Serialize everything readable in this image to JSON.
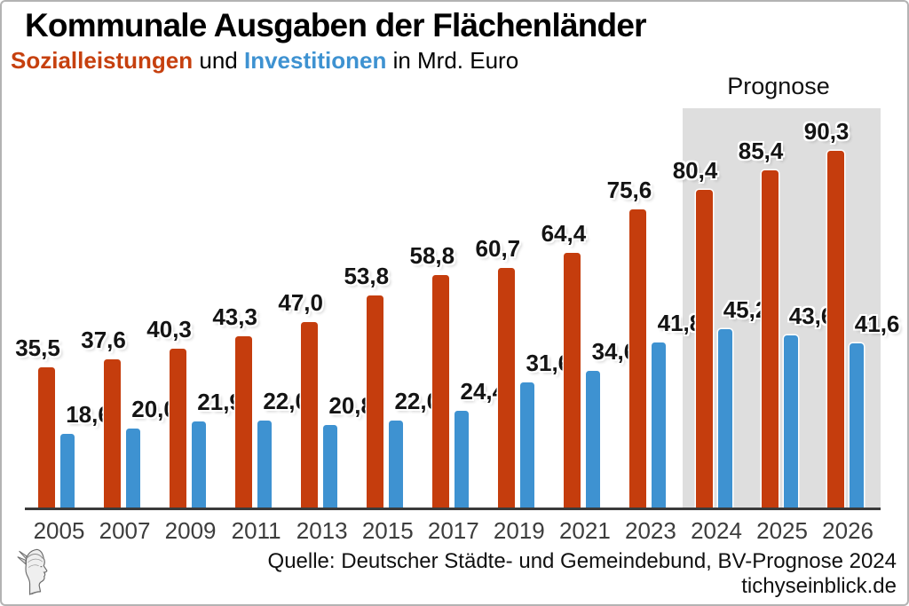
{
  "chart_data": {
    "type": "bar",
    "title": "Kommunale Ausgaben der Flächenländer",
    "subtitle_und": " und ",
    "subtitle_unit_text": " in Mrd. Euro",
    "unit": "Mrd. Euro",
    "categories": [
      "2005",
      "2007",
      "2009",
      "2011",
      "2013",
      "2015",
      "2017",
      "2019",
      "2021",
      "2023",
      "2024",
      "2025",
      "2026"
    ],
    "series": [
      {
        "name": "Sozialleistungen",
        "color": "#c53d0d",
        "values": [
          35.5,
          37.6,
          40.3,
          43.3,
          47.0,
          53.8,
          58.8,
          60.7,
          64.4,
          75.6,
          80.4,
          85.4,
          90.3
        ],
        "value_labels": [
          "35,5",
          "37,6",
          "40,3",
          "43,3",
          "47,0",
          "53,8",
          "58,8",
          "60,7",
          "64,4",
          "75,6",
          "80,4",
          "85,4",
          "90,3"
        ]
      },
      {
        "name": "Investitionen",
        "color": "#3e92d1",
        "values": [
          18.6,
          20.0,
          21.9,
          22.0,
          20.8,
          22.0,
          24.4,
          31.6,
          34.6,
          41.8,
          45.2,
          43.6,
          41.6
        ],
        "value_labels": [
          "18,6",
          "20,0",
          "21,9",
          "22,0",
          "20,8",
          "22,0",
          "24,4",
          "31,6",
          "34,6",
          "41,8",
          "45,2",
          "43,6",
          "41,6"
        ]
      }
    ],
    "ylim": [
      0,
      100
    ],
    "grid": false,
    "legend_position": "in-subtitle",
    "prognose": {
      "label": "Prognose",
      "start_category": "2024",
      "start_index": 10,
      "band_color": "#dedede"
    }
  },
  "footer": {
    "source": "Quelle: Deutscher Städte- und Gemeindebund, BV-Prognose 2024",
    "website": "tichyseinblick.de"
  },
  "colors": {
    "sozialleistungen": "#c53d0d",
    "investitionen": "#3e92d1",
    "prognose_band": "#dedede",
    "axis": "#3a3a3a",
    "background": "#ffffff"
  }
}
